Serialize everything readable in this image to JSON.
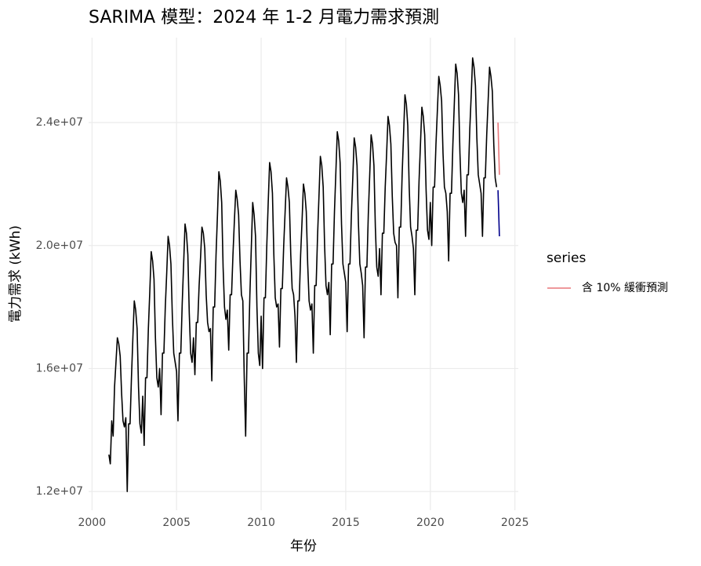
{
  "chart_data": {
    "type": "line",
    "title": "SARIMA 模型：2024 年 1-2 月電力需求預測",
    "x_label": "年份",
    "y_label": "電力需求 (kWh)",
    "legend_title": "series",
    "grid": true,
    "xlim": [
      1999.8,
      2025.2
    ],
    "xticks": [
      2000,
      2005,
      2010,
      2015,
      2020,
      2025
    ],
    "ylim": [
      11390000,
      26760000
    ],
    "yticks": [
      {
        "value": 12000000,
        "label": "1.2e+07"
      },
      {
        "value": 16000000,
        "label": "1.6e+07"
      },
      {
        "value": 20000000,
        "label": "2.0e+07"
      },
      {
        "value": 24000000,
        "label": "2.4e+07"
      }
    ],
    "x": [
      2001,
      2001.083,
      2001.167,
      2001.25,
      2001.333,
      2001.417,
      2001.5,
      2001.583,
      2001.667,
      2001.75,
      2001.833,
      2001.917,
      2002,
      2002.083,
      2002.167,
      2002.25,
      2002.333,
      2002.417,
      2002.5,
      2002.583,
      2002.667,
      2002.75,
      2002.833,
      2002.917,
      2003,
      2003.083,
      2003.167,
      2003.25,
      2003.333,
      2003.417,
      2003.5,
      2003.583,
      2003.667,
      2003.75,
      2003.833,
      2003.917,
      2004,
      2004.083,
      2004.167,
      2004.25,
      2004.333,
      2004.417,
      2004.5,
      2004.583,
      2004.667,
      2004.75,
      2004.833,
      2004.917,
      2005,
      2005.083,
      2005.167,
      2005.25,
      2005.333,
      2005.417,
      2005.5,
      2005.583,
      2005.667,
      2005.75,
      2005.833,
      2005.917,
      2006,
      2006.083,
      2006.167,
      2006.25,
      2006.333,
      2006.417,
      2006.5,
      2006.583,
      2006.667,
      2006.75,
      2006.833,
      2006.917,
      2007,
      2007.083,
      2007.167,
      2007.25,
      2007.333,
      2007.417,
      2007.5,
      2007.583,
      2007.667,
      2007.75,
      2007.833,
      2007.917,
      2008,
      2008.083,
      2008.167,
      2008.25,
      2008.333,
      2008.417,
      2008.5,
      2008.583,
      2008.667,
      2008.75,
      2008.833,
      2008.917,
      2009,
      2009.083,
      2009.167,
      2009.25,
      2009.333,
      2009.417,
      2009.5,
      2009.583,
      2009.667,
      2009.75,
      2009.833,
      2009.917,
      2010,
      2010.083,
      2010.167,
      2010.25,
      2010.333,
      2010.417,
      2010.5,
      2010.583,
      2010.667,
      2010.75,
      2010.833,
      2010.917,
      2011,
      2011.083,
      2011.167,
      2011.25,
      2011.333,
      2011.417,
      2011.5,
      2011.583,
      2011.667,
      2011.75,
      2011.833,
      2011.917,
      2012,
      2012.083,
      2012.167,
      2012.25,
      2012.333,
      2012.417,
      2012.5,
      2012.583,
      2012.667,
      2012.75,
      2012.833,
      2012.917,
      2013,
      2013.083,
      2013.167,
      2013.25,
      2013.333,
      2013.417,
      2013.5,
      2013.583,
      2013.667,
      2013.75,
      2013.833,
      2013.917,
      2014,
      2014.083,
      2014.167,
      2014.25,
      2014.333,
      2014.417,
      2014.5,
      2014.583,
      2014.667,
      2014.75,
      2014.833,
      2014.917,
      2015,
      2015.083,
      2015.167,
      2015.25,
      2015.333,
      2015.417,
      2015.5,
      2015.583,
      2015.667,
      2015.75,
      2015.833,
      2015.917,
      2016,
      2016.083,
      2016.167,
      2016.25,
      2016.333,
      2016.417,
      2016.5,
      2016.583,
      2016.667,
      2016.75,
      2016.833,
      2016.917,
      2017,
      2017.083,
      2017.167,
      2017.25,
      2017.333,
      2017.417,
      2017.5,
      2017.583,
      2017.667,
      2017.75,
      2017.833,
      2017.917,
      2018,
      2018.083,
      2018.167,
      2018.25,
      2018.333,
      2018.417,
      2018.5,
      2018.583,
      2018.667,
      2018.75,
      2018.833,
      2018.917,
      2019,
      2019.083,
      2019.167,
      2019.25,
      2019.333,
      2019.417,
      2019.5,
      2019.583,
      2019.667,
      2019.75,
      2019.833,
      2019.917,
      2020,
      2020.083,
      2020.167,
      2020.25,
      2020.333,
      2020.417,
      2020.5,
      2020.583,
      2020.667,
      2020.75,
      2020.833,
      2020.917,
      2021,
      2021.083,
      2021.167,
      2021.25,
      2021.333,
      2021.417,
      2021.5,
      2021.583,
      2021.667,
      2021.75,
      2021.833,
      2021.917,
      2022,
      2022.083,
      2022.167,
      2022.25,
      2022.333,
      2022.417,
      2022.5,
      2022.583,
      2022.667,
      2022.75,
      2022.833,
      2022.917,
      2023,
      2023.083,
      2023.167,
      2023.25,
      2023.333,
      2023.417,
      2023.5,
      2023.583,
      2023.667,
      2023.75,
      2023.833,
      2023.917
    ],
    "series": [
      {
        "name": null,
        "color": "#000000",
        "values": [
          13200000,
          12900000,
          14300000,
          13800000,
          15400000,
          16200000,
          17000000,
          16800000,
          16400000,
          15200000,
          14300000,
          14100000,
          14400000,
          12000000,
          14200000,
          14200000,
          15700000,
          17000000,
          18200000,
          17900000,
          17300000,
          15400000,
          14200000,
          13900000,
          15100000,
          13500000,
          15700000,
          15700000,
          17300000,
          18500000,
          19800000,
          19500000,
          18900000,
          17000000,
          15700000,
          15400000,
          16000000,
          14500000,
          16500000,
          16500000,
          18000000,
          19100000,
          20300000,
          20000000,
          19400000,
          17700000,
          16500000,
          16200000,
          15900000,
          14300000,
          16500000,
          16500000,
          18100000,
          19400000,
          20700000,
          20400000,
          19700000,
          17800000,
          16500000,
          16200000,
          17000000,
          15800000,
          17500000,
          17500000,
          18700000,
          19600000,
          20600000,
          20400000,
          19900000,
          18400000,
          17500000,
          17200000,
          17300000,
          15600000,
          18000000,
          18000000,
          19700000,
          21000000,
          22400000,
          22100000,
          21400000,
          19300000,
          18000000,
          17600000,
          17900000,
          16600000,
          18400000,
          18400000,
          19700000,
          20800000,
          21800000,
          21500000,
          21000000,
          19500000,
          18400000,
          18200000,
          15700000,
          13800000,
          16500000,
          16500000,
          18400000,
          19900000,
          21400000,
          21000000,
          20300000,
          18000000,
          16500000,
          16100000,
          17700000,
          16000000,
          18300000,
          18300000,
          20000000,
          21400000,
          22700000,
          22400000,
          21700000,
          19700000,
          18300000,
          18000000,
          18100000,
          16700000,
          18600000,
          18600000,
          20000000,
          21100000,
          22200000,
          21900000,
          21400000,
          19700000,
          18600000,
          18400000,
          17700000,
          16200000,
          18200000,
          18200000,
          19700000,
          20800000,
          22000000,
          21700000,
          21100000,
          19400000,
          18200000,
          17900000,
          18100000,
          16500000,
          18700000,
          18700000,
          20300000,
          21600000,
          22900000,
          22600000,
          21900000,
          20000000,
          18700000,
          18400000,
          18800000,
          17100000,
          19400000,
          19400000,
          21100000,
          22400000,
          23700000,
          23400000,
          22700000,
          20700000,
          19400000,
          19100000,
          18800000,
          17200000,
          19400000,
          19400000,
          21000000,
          22200000,
          23500000,
          23200000,
          22600000,
          20700000,
          19400000,
          19100000,
          18700000,
          17000000,
          19300000,
          19300000,
          21000000,
          22300000,
          23600000,
          23300000,
          22600000,
          20600000,
          19300000,
          19000000,
          19900000,
          18400000,
          20400000,
          20400000,
          21900000,
          23000000,
          24200000,
          23900000,
          23300000,
          21600000,
          20400000,
          20100000,
          20000000,
          18300000,
          20600000,
          20600000,
          22300000,
          23600000,
          24900000,
          24600000,
          23900000,
          21900000,
          20600000,
          20300000,
          19900000,
          18400000,
          20500000,
          20500000,
          22100000,
          23300000,
          24500000,
          24200000,
          23600000,
          21800000,
          20500000,
          20200000,
          21400000,
          20000000,
          21900000,
          21900000,
          23300000,
          24400000,
          25500000,
          25200000,
          24700000,
          23000000,
          21900000,
          21700000,
          21100000,
          19500000,
          21700000,
          21700000,
          23300000,
          24600000,
          25900000,
          25600000,
          24900000,
          23000000,
          21700000,
          21400000,
          21800000,
          20300000,
          22300000,
          22300000,
          23800000,
          24900000,
          26100000,
          25800000,
          25200000,
          23500000,
          22300000,
          22000000,
          21700000,
          20300000,
          22200000,
          22200000,
          23600000,
          24700000,
          25800000,
          25500000,
          25000000,
          23300000,
          22200000,
          21900000
        ]
      },
      {
        "name": null,
        "color": "#00008b",
        "x": [
          2024,
          2024.083
        ],
        "values": [
          21800000,
          20300000
        ]
      },
      {
        "name": "含 10% 緩衝預測",
        "color": "#e8767a",
        "x": [
          2024,
          2024.083
        ],
        "values": [
          24000000,
          22300000
        ]
      }
    ]
  }
}
